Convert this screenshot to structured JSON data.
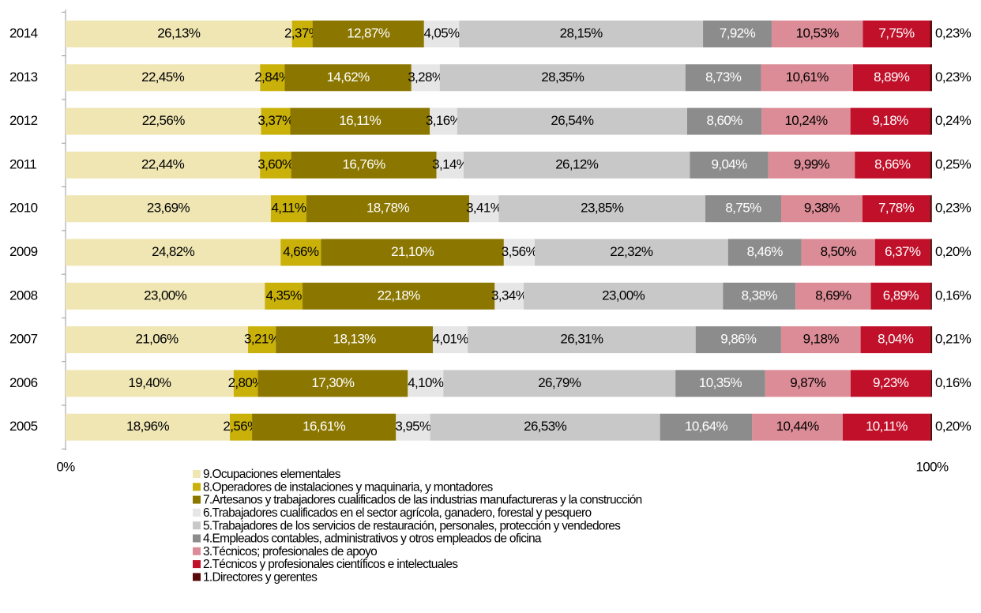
{
  "chart_data": {
    "type": "bar",
    "orientation": "horizontal",
    "stacked": true,
    "categories": [
      "2014",
      "2013",
      "2012",
      "2011",
      "2010",
      "2009",
      "2008",
      "2007",
      "2006",
      "2005"
    ],
    "xlim": [
      0,
      100
    ],
    "xticks": [
      {
        "value": 0,
        "label": "0%"
      },
      {
        "value": 100,
        "label": "100%"
      }
    ],
    "series": [
      {
        "name": "9.Ocupaciones elementales",
        "color": "#f0e6b4",
        "values": [
          26.13,
          22.45,
          22.56,
          22.44,
          23.69,
          24.82,
          23.0,
          21.06,
          19.4,
          18.96
        ],
        "value_labels": [
          "26,13%",
          "22,45%",
          "22,56%",
          "22,44%",
          "23,69%",
          "24,82%",
          "23,00%",
          "21,06%",
          "19,40%",
          "18,96%"
        ]
      },
      {
        "name": "8.Operadores de instalaciones y maquinaria, y montadores",
        "color": "#c9b10a",
        "values": [
          2.37,
          2.84,
          3.37,
          3.6,
          4.11,
          4.66,
          4.35,
          3.21,
          2.8,
          2.56
        ],
        "value_labels": [
          "2,37%",
          "2,84%",
          "3,37%",
          "3,60%",
          "4,11%",
          "4,66%",
          "4,35%",
          "3,21%",
          "2,80%",
          "2,56%"
        ]
      },
      {
        "name": "7.Artesanos y trabajadores cualificados de las industrias manufactureras y la construcción",
        "color": "#8b7700",
        "values": [
          12.87,
          14.62,
          16.11,
          16.76,
          18.78,
          21.1,
          22.18,
          18.13,
          17.3,
          16.61
        ],
        "value_labels": [
          "12,87%",
          "14,62%",
          "16,11%",
          "16,76%",
          "18,78%",
          "21,10%",
          "22,18%",
          "18,13%",
          "17,30%",
          "16,61%"
        ]
      },
      {
        "name": "6.Trabajadores cualificados en el sector agrícola, ganadero, forestal y pesquero",
        "color": "#e6e6e6",
        "values": [
          4.05,
          3.28,
          3.16,
          3.14,
          3.41,
          3.56,
          3.34,
          4.01,
          4.1,
          3.95
        ],
        "value_labels": [
          "4,05%",
          "3,28%",
          "3,16%",
          "3,14%",
          "3,41%",
          "3,56%",
          "3,34%",
          "4,01%",
          "4,10%",
          "3,95%"
        ]
      },
      {
        "name": "5.Trabajadores de los servicios de restauración, personales, protección y vendedores",
        "color": "#c8c8c8",
        "values": [
          28.15,
          28.35,
          26.54,
          26.12,
          23.85,
          22.32,
          23.0,
          26.31,
          26.79,
          26.53
        ],
        "value_labels": [
          "28,15%",
          "28,35%",
          "26,54%",
          "26,12%",
          "23,85%",
          "22,32%",
          "23,00%",
          "26,31%",
          "26,79%",
          "26,53%"
        ]
      },
      {
        "name": "4.Empleados contables, administrativos y otros empleados de oficina",
        "color": "#8c8c8c",
        "values": [
          7.92,
          8.73,
          8.6,
          9.04,
          8.75,
          8.46,
          8.38,
          9.86,
          10.35,
          10.64
        ],
        "value_labels": [
          "7,92%",
          "8,73%",
          "8,60%",
          "9,04%",
          "8,75%",
          "8,46%",
          "8,38%",
          "9,86%",
          "10,35%",
          "10,64%"
        ]
      },
      {
        "name": "3.Técnicos; profesionales de apoyo",
        "color": "#dc8c96",
        "values": [
          10.53,
          10.61,
          10.24,
          9.99,
          9.38,
          8.5,
          8.69,
          9.18,
          9.87,
          10.44
        ],
        "value_labels": [
          "10,53%",
          "10,61%",
          "10,24%",
          "9,99%",
          "9,38%",
          "8,50%",
          "8,69%",
          "9,18%",
          "9,87%",
          "10,44%"
        ]
      },
      {
        "name": "2.Técnicos y profesionales científicos e intelectuales",
        "color": "#c0102a",
        "values": [
          7.75,
          8.89,
          9.18,
          8.66,
          7.78,
          6.37,
          6.89,
          8.04,
          9.23,
          10.11
        ],
        "value_labels": [
          "7,75%",
          "8,89%",
          "9,18%",
          "8,66%",
          "7,78%",
          "6,37%",
          "6,89%",
          "8,04%",
          "9,23%",
          "10,11%"
        ]
      },
      {
        "name": "1.Directores y gerentes",
        "color": "#5a0a0a",
        "values": [
          0.23,
          0.23,
          0.24,
          0.25,
          0.23,
          0.2,
          0.16,
          0.21,
          0.16,
          0.2
        ],
        "value_labels": [
          "0,23%",
          "0,23%",
          "0,24%",
          "0,25%",
          "0,23%",
          "0,20%",
          "0,16%",
          "0,21%",
          "0,16%",
          "0,20%"
        ]
      }
    ]
  }
}
